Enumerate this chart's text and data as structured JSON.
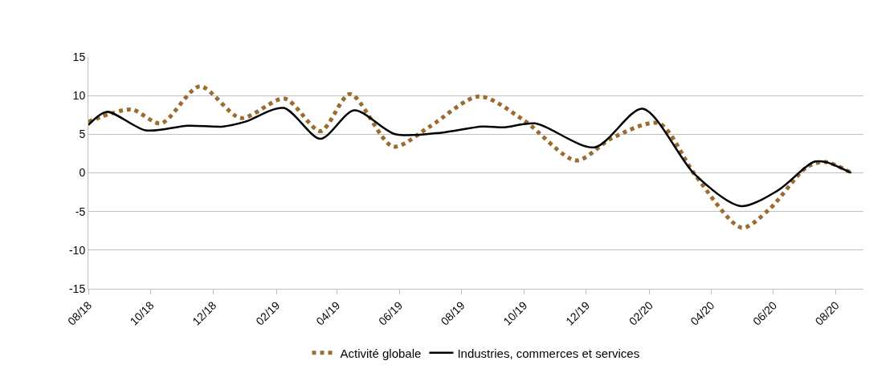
{
  "chart_data": {
    "type": "line",
    "xlim": [
      "2018-08-01",
      "2020-08-28"
    ],
    "ylim": [
      -15,
      15
    ],
    "xticks": [
      {
        "value": "2018-08",
        "label": "08/18"
      },
      {
        "value": "2018-10",
        "label": "10/18"
      },
      {
        "value": "2018-12",
        "label": "12/18"
      },
      {
        "value": "2019-02",
        "label": "02/19"
      },
      {
        "value": "2019-04",
        "label": "04/19"
      },
      {
        "value": "2019-06",
        "label": "06/19"
      },
      {
        "value": "2019-08",
        "label": "08/19"
      },
      {
        "value": "2019-10",
        "label": "10/19"
      },
      {
        "value": "2019-12",
        "label": "12/19"
      },
      {
        "value": "2020-02",
        "label": "02/20"
      },
      {
        "value": "2020-04",
        "label": "04/20"
      },
      {
        "value": "2020-06",
        "label": "06/20"
      },
      {
        "value": "2020-08",
        "label": "08/20"
      }
    ],
    "yticks": [
      -15,
      -10,
      -5,
      0,
      5,
      10,
      15
    ],
    "grid": "y",
    "legend": "bottom",
    "marker": "none",
    "series": [
      {
        "name": "Activité globale",
        "color": "#9c6b30",
        "line_style": "dotted",
        "x": [
          "2018-08-01",
          "2018-09-12",
          "2018-10-11",
          "2018-11-18",
          "2018-12-28",
          "2019-02-09",
          "2019-03-16",
          "2019-04-14",
          "2019-05-26",
          "2019-07-01",
          "2019-08-18",
          "2019-10-01",
          "2019-11-21",
          "2019-12-26",
          "2020-02-10",
          "2020-03-16",
          "2020-05-01",
          "2020-05-28",
          "2020-07-04",
          "2020-07-22",
          "2020-08-16"
        ],
        "values": [
          6.6,
          8.2,
          6.4,
          11.2,
          7.1,
          9.6,
          5.4,
          10.2,
          3.4,
          6.0,
          9.9,
          6.8,
          1.6,
          4.5,
          6.4,
          -0.2,
          -7.1,
          -4.7,
          0.8,
          1.4,
          0
        ]
      },
      {
        "name": "Industries, commerces et services",
        "color": "#000000",
        "line_style": "solid",
        "x": [
          "2018-08-01",
          "2018-08-19",
          "2018-09-26",
          "2018-11-06",
          "2018-12-11",
          "2019-01-01",
          "2019-02-08",
          "2019-03-16",
          "2019-04-18",
          "2019-05-28",
          "2019-07-12",
          "2019-08-21",
          "2019-09-12",
          "2019-10-12",
          "2019-12-09",
          "2020-01-25",
          "2020-03-16",
          "2020-04-30",
          "2020-06-05",
          "2020-07-10",
          "2020-07-22",
          "2020-08-16"
        ],
        "values": [
          6.2,
          7.9,
          5.5,
          6.1,
          6.0,
          6.6,
          8.4,
          4.4,
          8.1,
          5.0,
          5.2,
          6.0,
          5.9,
          6.4,
          3.3,
          8.3,
          -0.2,
          -4.3,
          -2.3,
          1.4,
          1.4,
          0
        ]
      }
    ]
  }
}
